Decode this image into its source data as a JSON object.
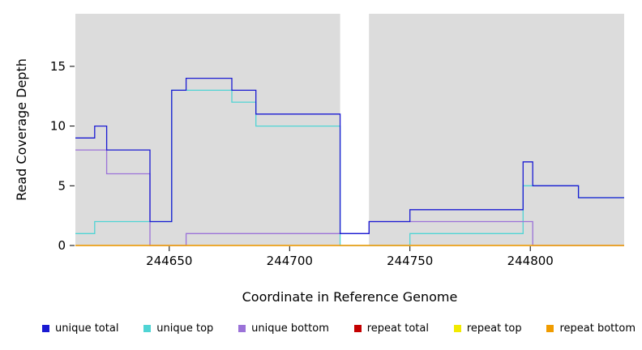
{
  "chart_data": {
    "type": "line",
    "step": true,
    "title": "",
    "xlabel": "Coordinate in Reference Genome",
    "ylabel": "Read Coverage Depth",
    "xlim": [
      244611,
      244839
    ],
    "ylim": [
      0,
      19.4
    ],
    "xticks": [
      244650,
      244700,
      244750,
      244800
    ],
    "yticks": [
      0,
      5,
      10,
      15
    ],
    "grid": false,
    "legend_position": "bottom",
    "plot_background": "#dcdcdc",
    "gap_region": {
      "x1": 244721,
      "x2": 244733,
      "color": "#ffffff"
    },
    "draw_order": [
      "unique top",
      "unique bottom",
      "unique total",
      "repeat total",
      "repeat top",
      "repeat bottom"
    ],
    "series": [
      {
        "name": "unique total",
        "color": "#1a1ad2",
        "x_end": 244839,
        "steps": [
          [
            244611,
            9
          ],
          [
            244619,
            10
          ],
          [
            244624,
            8
          ],
          [
            244642,
            2
          ],
          [
            244651,
            13
          ],
          [
            244657,
            14
          ],
          [
            244676,
            13
          ],
          [
            244686,
            11
          ],
          [
            244721,
            1
          ],
          [
            244733,
            2
          ],
          [
            244750,
            3
          ],
          [
            244797,
            7
          ],
          [
            244801,
            5
          ],
          [
            244820,
            4
          ]
        ]
      },
      {
        "name": "unique top",
        "color": "#4fd4d4",
        "x_end": 244839,
        "steps": [
          [
            244611,
            1
          ],
          [
            244619,
            2
          ],
          [
            244651,
            13
          ],
          [
            244676,
            12
          ],
          [
            244686,
            10
          ],
          [
            244721,
            0
          ],
          [
            244750,
            1
          ],
          [
            244797,
            5
          ],
          [
            244820,
            4
          ]
        ]
      },
      {
        "name": "unique bottom",
        "color": "#9b72d8",
        "x_end": 244839,
        "steps": [
          [
            244611,
            8
          ],
          [
            244624,
            6
          ],
          [
            244642,
            0
          ],
          [
            244657,
            1
          ],
          [
            244733,
            2
          ],
          [
            244801,
            0
          ]
        ]
      },
      {
        "name": "repeat total",
        "color": "#c40000",
        "x_end": 244839,
        "steps": [
          [
            244611,
            0
          ]
        ]
      },
      {
        "name": "repeat top",
        "color": "#f2ea00",
        "x_end": 244839,
        "steps": [
          [
            244611,
            0
          ]
        ]
      },
      {
        "name": "repeat bottom",
        "color": "#f09c00",
        "x_end": 244839,
        "steps": [
          [
            244611,
            0
          ]
        ]
      }
    ]
  }
}
